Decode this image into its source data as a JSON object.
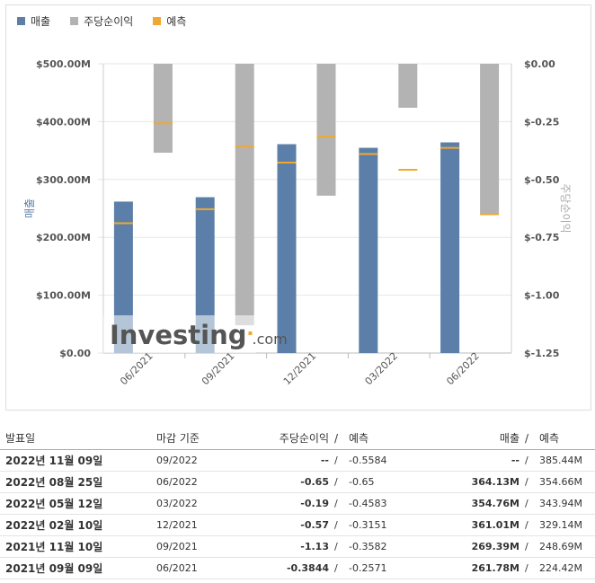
{
  "legend": [
    {
      "label": "매출",
      "color": "#5b7fa8"
    },
    {
      "label": "주당순이익",
      "color": "#b3b3b3"
    },
    {
      "label": "예측",
      "color": "#f0a830"
    }
  ],
  "watermark": {
    "brand": "Investing",
    "suffix": ".com"
  },
  "chart_data": {
    "type": "bar",
    "categories": [
      "06/2021",
      "09/2021",
      "12/2021",
      "03/2022",
      "06/2022"
    ],
    "series": [
      {
        "name": "매출",
        "axis": "left",
        "values": [
          261.78,
          269.39,
          361.01,
          354.76,
          364.13
        ],
        "forecast": [
          224.42,
          248.69,
          329.14,
          343.94,
          354.66
        ]
      },
      {
        "name": "주당순이익",
        "axis": "right",
        "values": [
          -0.3844,
          -1.13,
          -0.57,
          -0.19,
          -0.65
        ],
        "forecast": [
          -0.2571,
          -0.3582,
          -0.3151,
          -0.4583,
          -0.65
        ]
      }
    ],
    "ylabel": "매출",
    "y2label": "주당순이익",
    "ylim": [
      0,
      500
    ],
    "y2lim": [
      -1.25,
      0
    ],
    "yticks": [
      "$0.00",
      "$100.00M",
      "$200.00M",
      "$300.00M",
      "$400.00M",
      "$500.00M"
    ],
    "y2ticks": [
      "$-1.25",
      "$-1.00",
      "$-0.75",
      "$-0.50",
      "$-0.25",
      "$0.00"
    ]
  },
  "table": {
    "headers": {
      "date": "발표일",
      "period": "마감 기준",
      "eps": "주당순이익",
      "eps_sep": "/",
      "eps_forecast": "예측",
      "rev": "매출",
      "rev_sep": "/",
      "rev_forecast": "예측"
    },
    "rows": [
      {
        "date": "2022년 11월 09일",
        "period": "09/2022",
        "eps": "--",
        "eps_color": "plain",
        "sep": "/",
        "eps_forecast": "-0.5584",
        "rev": "--",
        "rev_color": "plain",
        "sep2": "/",
        "rev_forecast": "385.44M"
      },
      {
        "date": "2022년 08월 25일",
        "period": "06/2022",
        "eps": "-0.65",
        "eps_color": "plain",
        "sep": "/",
        "eps_forecast": "-0.65",
        "rev": "364.13M",
        "rev_color": "rev-red",
        "sep2": "/",
        "rev_forecast": "354.66M"
      },
      {
        "date": "2022년 05월 12일",
        "period": "03/2022",
        "eps": "-0.19",
        "eps_color": "neg",
        "sep": "/",
        "eps_forecast": "-0.4583",
        "rev": "354.76M",
        "rev_color": "rev-red",
        "sep2": "/",
        "rev_forecast": "343.94M"
      },
      {
        "date": "2022년 02월 10일",
        "period": "12/2021",
        "eps": "-0.57",
        "eps_color": "blue",
        "sep": "/",
        "eps_forecast": "-0.3151",
        "rev": "361.01M",
        "rev_color": "rev-red",
        "sep2": "/",
        "rev_forecast": "329.14M"
      },
      {
        "date": "2021년 11월 10일",
        "period": "09/2021",
        "eps": "-1.13",
        "eps_color": "blue",
        "sep": "/",
        "eps_forecast": "-0.3582",
        "rev": "269.39M",
        "rev_color": "rev-red",
        "sep2": "/",
        "rev_forecast": "248.69M"
      },
      {
        "date": "2021년 09월 09일",
        "period": "06/2021",
        "eps": "-0.3844",
        "eps_color": "blue",
        "sep": "/",
        "eps_forecast": "-0.2571",
        "rev": "261.78M",
        "rev_color": "rev-red",
        "sep2": "/",
        "rev_forecast": "224.42M"
      }
    ]
  }
}
